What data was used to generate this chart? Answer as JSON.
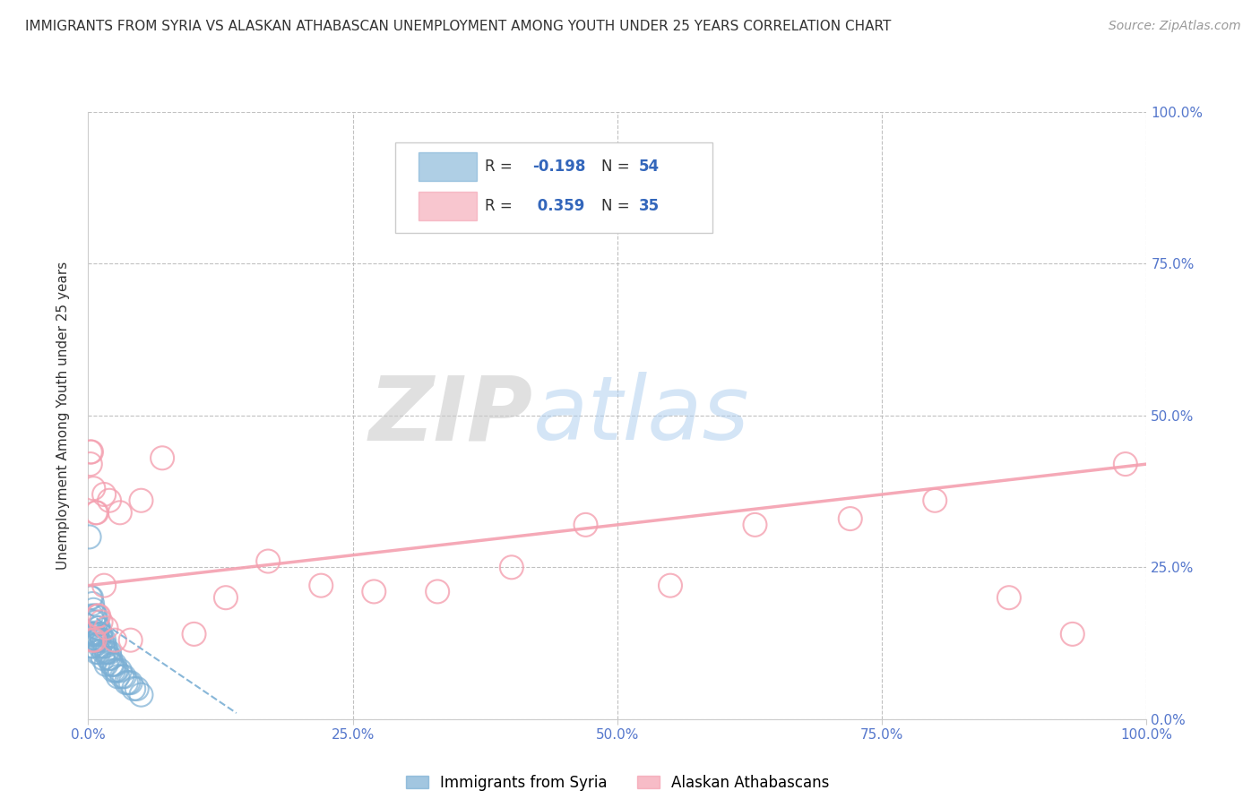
{
  "title": "IMMIGRANTS FROM SYRIA VS ALASKAN ATHABASCAN UNEMPLOYMENT AMONG YOUTH UNDER 25 YEARS CORRELATION CHART",
  "source": "Source: ZipAtlas.com",
  "ylabel": "Unemployment Among Youth under 25 years",
  "xlim": [
    0,
    1.0
  ],
  "ylim": [
    0,
    1.0
  ],
  "xticks": [
    0.0,
    0.25,
    0.5,
    0.75,
    1.0
  ],
  "xtick_labels": [
    "0.0%",
    "25.0%",
    "50.0%",
    "75.0%",
    "100.0%"
  ],
  "ytick_labels_right": [
    "0.0%",
    "25.0%",
    "50.0%",
    "75.0%",
    "100.0%"
  ],
  "legend1_R": "-0.198",
  "legend1_N": "54",
  "legend2_R": "0.359",
  "legend2_N": "35",
  "blue_color": "#7BAFD4",
  "pink_color": "#F4A0B0",
  "blue_scatter_x": [
    0.001,
    0.002,
    0.002,
    0.003,
    0.003,
    0.003,
    0.004,
    0.004,
    0.005,
    0.005,
    0.005,
    0.006,
    0.006,
    0.007,
    0.007,
    0.008,
    0.008,
    0.008,
    0.009,
    0.009,
    0.01,
    0.01,
    0.01,
    0.011,
    0.011,
    0.012,
    0.013,
    0.014,
    0.014,
    0.015,
    0.015,
    0.016,
    0.017,
    0.017,
    0.018,
    0.019,
    0.02,
    0.021,
    0.022,
    0.023,
    0.024,
    0.025,
    0.026,
    0.027,
    0.028,
    0.03,
    0.032,
    0.034,
    0.036,
    0.038,
    0.04,
    0.043,
    0.046,
    0.05
  ],
  "blue_scatter_y": [
    0.3,
    0.2,
    0.14,
    0.2,
    0.17,
    0.12,
    0.19,
    0.14,
    0.18,
    0.16,
    0.12,
    0.17,
    0.14,
    0.17,
    0.13,
    0.16,
    0.14,
    0.11,
    0.15,
    0.13,
    0.15,
    0.13,
    0.11,
    0.14,
    0.12,
    0.14,
    0.13,
    0.12,
    0.1,
    0.13,
    0.11,
    0.12,
    0.11,
    0.09,
    0.11,
    0.1,
    0.11,
    0.1,
    0.09,
    0.09,
    0.08,
    0.09,
    0.08,
    0.08,
    0.07,
    0.08,
    0.07,
    0.07,
    0.06,
    0.06,
    0.06,
    0.05,
    0.05,
    0.04
  ],
  "pink_scatter_x": [
    0.002,
    0.003,
    0.005,
    0.007,
    0.008,
    0.009,
    0.01,
    0.012,
    0.015,
    0.017,
    0.02,
    0.03,
    0.04,
    0.05,
    0.07,
    0.1,
    0.13,
    0.17,
    0.22,
    0.27,
    0.33,
    0.4,
    0.47,
    0.55,
    0.63,
    0.72,
    0.8,
    0.87,
    0.93,
    0.98,
    0.002,
    0.004,
    0.006,
    0.015,
    0.025
  ],
  "pink_scatter_y": [
    0.44,
    0.44,
    0.38,
    0.34,
    0.34,
    0.17,
    0.17,
    0.16,
    0.37,
    0.15,
    0.36,
    0.34,
    0.13,
    0.36,
    0.43,
    0.14,
    0.2,
    0.26,
    0.22,
    0.21,
    0.21,
    0.25,
    0.32,
    0.22,
    0.32,
    0.33,
    0.36,
    0.2,
    0.14,
    0.42,
    0.42,
    0.13,
    0.13,
    0.22,
    0.13
  ],
  "blue_trend_x": [
    0.0,
    0.14
  ],
  "blue_trend_y": [
    0.175,
    0.01
  ],
  "pink_trend_x": [
    0.0,
    1.0
  ],
  "pink_trend_y": [
    0.22,
    0.42
  ],
  "watermark_zip": "ZIP",
  "watermark_atlas": "atlas",
  "background_color": "#FFFFFF",
  "grid_color": "#BBBBBB",
  "tick_color": "#5577CC",
  "title_fontsize": 11,
  "tick_fontsize": 11,
  "source_fontsize": 10
}
